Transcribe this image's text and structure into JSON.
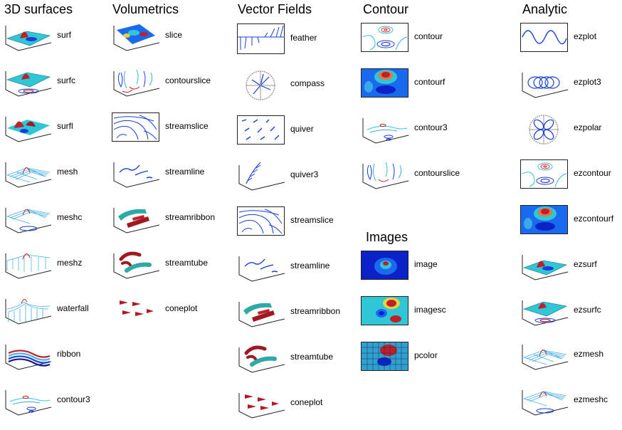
{
  "columns": [
    {
      "heading": "3D surfaces",
      "items": [
        {
          "label": "surf",
          "icon": "surf-icon"
        },
        {
          "label": "surfc",
          "icon": "surfc-icon"
        },
        {
          "label": "surfl",
          "icon": "surfl-icon"
        },
        {
          "label": "mesh",
          "icon": "mesh-icon"
        },
        {
          "label": "meshc",
          "icon": "meshc-icon"
        },
        {
          "label": "meshz",
          "icon": "meshz-icon"
        },
        {
          "label": "waterfall",
          "icon": "waterfall-icon"
        },
        {
          "label": "ribbon",
          "icon": "ribbon-icon"
        },
        {
          "label": "contour3",
          "icon": "contour3-icon"
        }
      ]
    },
    {
      "heading": "Volumetrics",
      "items": [
        {
          "label": "slice",
          "icon": "slice-icon"
        },
        {
          "label": "contourslice",
          "icon": "contourslice-icon"
        },
        {
          "label": "streamslice",
          "icon": "streamslice-icon"
        },
        {
          "label": "streamline",
          "icon": "streamline-icon"
        },
        {
          "label": "streamribbon",
          "icon": "streamribbon-icon"
        },
        {
          "label": "streamtube",
          "icon": "streamtube-icon"
        },
        {
          "label": "coneplot",
          "icon": "coneplot-icon"
        }
      ]
    },
    {
      "heading": "Vector Fields",
      "items": [
        {
          "label": "feather",
          "icon": "feather-icon"
        },
        {
          "label": "compass",
          "icon": "compass-icon"
        },
        {
          "label": "quiver",
          "icon": "quiver-icon"
        },
        {
          "label": "quiver3",
          "icon": "quiver3-icon"
        },
        {
          "label": "streamslice",
          "icon": "streamslice-icon"
        },
        {
          "label": "streamline",
          "icon": "streamline-icon"
        },
        {
          "label": "streamribbon",
          "icon": "streamribbon-icon"
        },
        {
          "label": "streamtube",
          "icon": "streamtube-icon"
        },
        {
          "label": "coneplot",
          "icon": "coneplot-icon"
        }
      ]
    },
    {
      "heading": "Contour",
      "items": [
        {
          "label": "contour",
          "icon": "contour-icon"
        },
        {
          "label": "contourf",
          "icon": "contourf-icon"
        },
        {
          "label": "contour3",
          "icon": "contour3-icon"
        },
        {
          "label": "contourslice",
          "icon": "contourslice-icon"
        }
      ]
    },
    {
      "heading": "Images",
      "items": [
        {
          "label": "image",
          "icon": "image-icon"
        },
        {
          "label": "imagesc",
          "icon": "imagesc-icon"
        },
        {
          "label": "pcolor",
          "icon": "pcolor-icon"
        }
      ]
    },
    {
      "heading": "Analytic",
      "items": [
        {
          "label": "ezplot",
          "icon": "ezplot-icon"
        },
        {
          "label": "ezplot3",
          "icon": "ezplot3-icon"
        },
        {
          "label": "ezpolar",
          "icon": "ezpolar-icon"
        },
        {
          "label": "ezcontour",
          "icon": "ezcontour-icon"
        },
        {
          "label": "ezcontourf",
          "icon": "ezcontourf-icon"
        },
        {
          "label": "ezsurf",
          "icon": "ezsurf-icon"
        },
        {
          "label": "ezsurfc",
          "icon": "ezsurfc-icon"
        },
        {
          "label": "ezmesh",
          "icon": "ezmesh-icon"
        },
        {
          "label": "ezmeshc",
          "icon": "ezmeshc-icon"
        }
      ]
    }
  ],
  "colors": {
    "blue": "#1a3fd8",
    "cyan": "#2fc7d6",
    "red": "#c0202a",
    "deep": "#0a22c8",
    "light": "#7fd8ff",
    "axis": "#222222"
  }
}
